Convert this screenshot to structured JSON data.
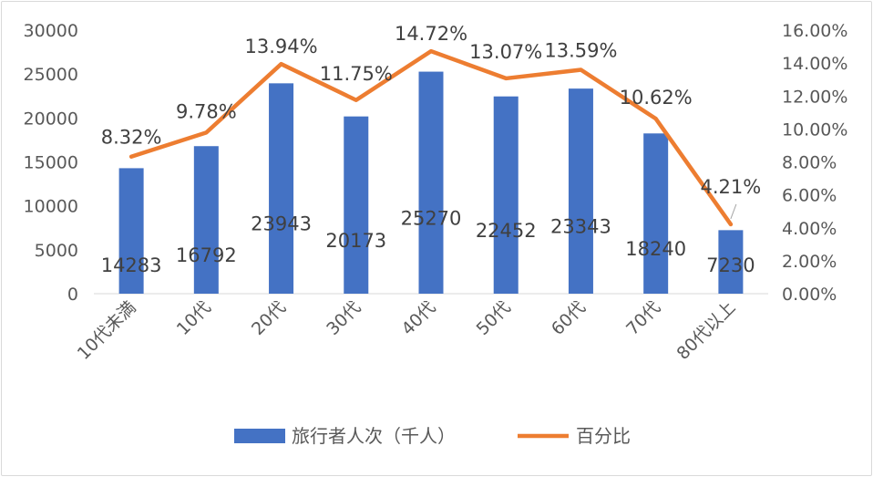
{
  "chart_data": {
    "type": "bar",
    "categories": [
      "10代未満",
      "10代",
      "20代",
      "30代",
      "40代",
      "50代",
      "60代",
      "70代",
      "80代以上"
    ],
    "series": [
      {
        "name": "旅行者人次（千人）",
        "type": "bar",
        "axis": "left",
        "color": "#4472c4",
        "values": [
          14283,
          16792,
          23943,
          20173,
          25270,
          22452,
          23343,
          18240,
          7230
        ]
      },
      {
        "name": "百分比",
        "type": "line",
        "axis": "right",
        "color": "#ed7d31",
        "values": [
          8.32,
          9.78,
          13.94,
          11.75,
          14.72,
          13.07,
          13.59,
          10.62,
          4.21
        ]
      }
    ],
    "bar_labels": [
      "14283",
      "16792",
      "23943",
      "20173",
      "25270",
      "22452",
      "23343",
      "18240",
      "7230"
    ],
    "line_labels": [
      "8.32%",
      "9.78%",
      "13.94%",
      "11.75%",
      "14.72%",
      "13.07%",
      "13.59%",
      "10.62%",
      "4.21%"
    ],
    "y_left": {
      "min": 0,
      "max": 30000,
      "step": 5000,
      "ticks": [
        "0",
        "5000",
        "10000",
        "15000",
        "20000",
        "25000",
        "30000"
      ]
    },
    "y_right": {
      "min": 0,
      "max": 16,
      "step": 2,
      "ticks": [
        "0.00%",
        "2.00%",
        "4.00%",
        "6.00%",
        "8.00%",
        "10.00%",
        "12.00%",
        "14.00%",
        "16.00%"
      ]
    },
    "legend": {
      "position": "bottom",
      "items": [
        "旅行者人次（千人）",
        "百分比"
      ]
    },
    "grid": false
  }
}
